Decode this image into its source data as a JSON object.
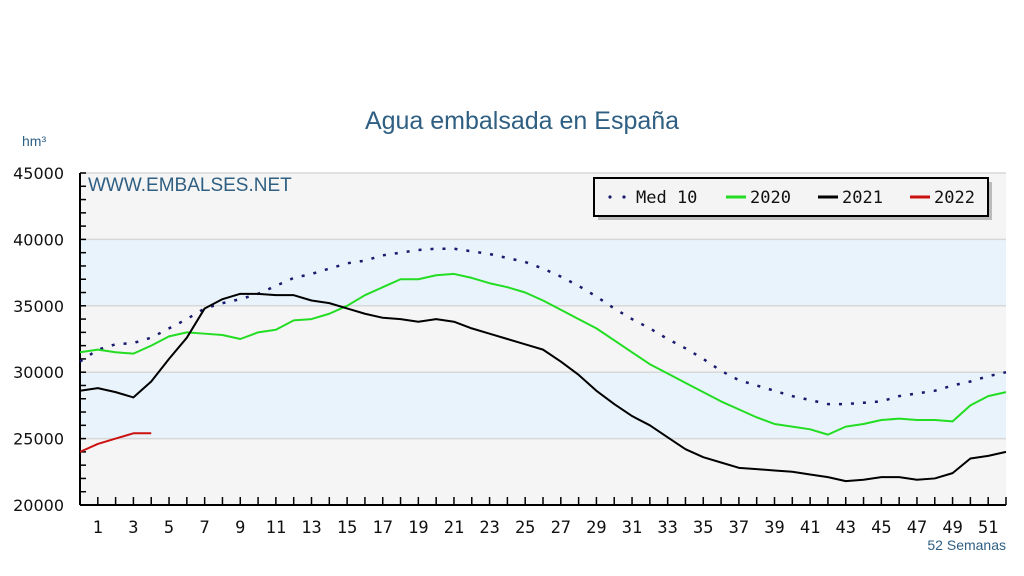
{
  "chart_data": {
    "type": "line",
    "title": "Agua embalsada en España",
    "ylabel": "hm³",
    "xlabel": "52 Semanas",
    "watermark": "WWW.EMBALSES.NET",
    "ylim": [
      20000,
      45000
    ],
    "xlim": [
      0,
      52
    ],
    "yticks": [
      "20000",
      "25000",
      "30000",
      "35000",
      "40000",
      "45000"
    ],
    "xticks": [
      "1",
      "3",
      "5",
      "7",
      "9",
      "11",
      "13",
      "15",
      "17",
      "19",
      "21",
      "23",
      "25",
      "27",
      "29",
      "31",
      "33",
      "35",
      "37",
      "39",
      "41",
      "43",
      "45",
      "47",
      "49",
      "51"
    ],
    "grid": true,
    "legend_position": "top-right",
    "background_bands": {
      "light": "#f5f5f5",
      "blue": "#e9f3fb"
    },
    "series": [
      {
        "name": "Med 10",
        "color": "#1a1a6e",
        "style": "dotted",
        "x": [
          0,
          1,
          2,
          3,
          4,
          5,
          6,
          7,
          8,
          9,
          10,
          11,
          12,
          13,
          14,
          15,
          16,
          17,
          18,
          19,
          20,
          21,
          22,
          23,
          24,
          25,
          26,
          27,
          28,
          29,
          30,
          31,
          32,
          33,
          34,
          35,
          36,
          37,
          38,
          39,
          40,
          41,
          42,
          43,
          44,
          45,
          46,
          47,
          48,
          49,
          50,
          51,
          52
        ],
        "values": [
          30800,
          31700,
          32100,
          32200,
          32600,
          33300,
          34000,
          34800,
          35200,
          35500,
          35900,
          36500,
          37100,
          37400,
          37800,
          38200,
          38400,
          38800,
          39000,
          39200,
          39300,
          39300,
          39100,
          38900,
          38600,
          38300,
          37800,
          37200,
          36500,
          35700,
          34800,
          34000,
          33300,
          32500,
          31800,
          31000,
          30100,
          29400,
          29000,
          28600,
          28200,
          27900,
          27600,
          27600,
          27700,
          27800,
          28200,
          28400,
          28600,
          29000,
          29300,
          29700,
          30000
        ]
      },
      {
        "name": "2020",
        "color": "#22dd22",
        "style": "solid",
        "x": [
          0,
          1,
          2,
          3,
          4,
          5,
          6,
          7,
          8,
          9,
          10,
          11,
          12,
          13,
          14,
          15,
          16,
          17,
          18,
          19,
          20,
          21,
          22,
          23,
          24,
          25,
          26,
          27,
          28,
          29,
          30,
          31,
          32,
          33,
          34,
          35,
          36,
          37,
          38,
          39,
          40,
          41,
          42,
          43,
          44,
          45,
          46,
          47,
          48,
          49,
          50,
          51,
          52
        ],
        "values": [
          31500,
          31700,
          31500,
          31400,
          32000,
          32700,
          33000,
          32900,
          32800,
          32500,
          33000,
          33200,
          33900,
          34000,
          34400,
          35000,
          35800,
          36400,
          37000,
          37000,
          37300,
          37400,
          37100,
          36700,
          36400,
          36000,
          35400,
          34700,
          34000,
          33300,
          32400,
          31500,
          30600,
          29900,
          29200,
          28500,
          27800,
          27200,
          26600,
          26100,
          25900,
          25700,
          25300,
          25900,
          26100,
          26400,
          26500,
          26400,
          26400,
          26300,
          27500,
          28200,
          28500
        ]
      },
      {
        "name": "2021",
        "color": "#000000",
        "style": "solid",
        "x": [
          0,
          1,
          2,
          3,
          4,
          5,
          6,
          7,
          8,
          9,
          10,
          11,
          12,
          13,
          14,
          15,
          16,
          17,
          18,
          19,
          20,
          21,
          22,
          23,
          24,
          25,
          26,
          27,
          28,
          29,
          30,
          31,
          32,
          33,
          34,
          35,
          36,
          37,
          38,
          39,
          40,
          41,
          42,
          43,
          44,
          45,
          46,
          47,
          48,
          49,
          50,
          51,
          52
        ],
        "values": [
          28600,
          28800,
          28500,
          28100,
          29300,
          31000,
          32600,
          34800,
          35500,
          35900,
          35900,
          35800,
          35800,
          35400,
          35200,
          34800,
          34400,
          34100,
          34000,
          33800,
          34000,
          33800,
          33300,
          32900,
          32500,
          32100,
          31700,
          30800,
          29800,
          28600,
          27600,
          26700,
          26000,
          25100,
          24200,
          23600,
          23200,
          22800,
          22700,
          22600,
          22500,
          22300,
          22100,
          21800,
          21900,
          22100,
          22100,
          21900,
          22000,
          22400,
          23500,
          23700,
          24000
        ]
      },
      {
        "name": "2022",
        "color": "#cc1111",
        "style": "solid",
        "x": [
          0,
          1,
          2,
          3,
          4
        ],
        "values": [
          24000,
          24600,
          25000,
          25400,
          25400
        ]
      }
    ]
  }
}
